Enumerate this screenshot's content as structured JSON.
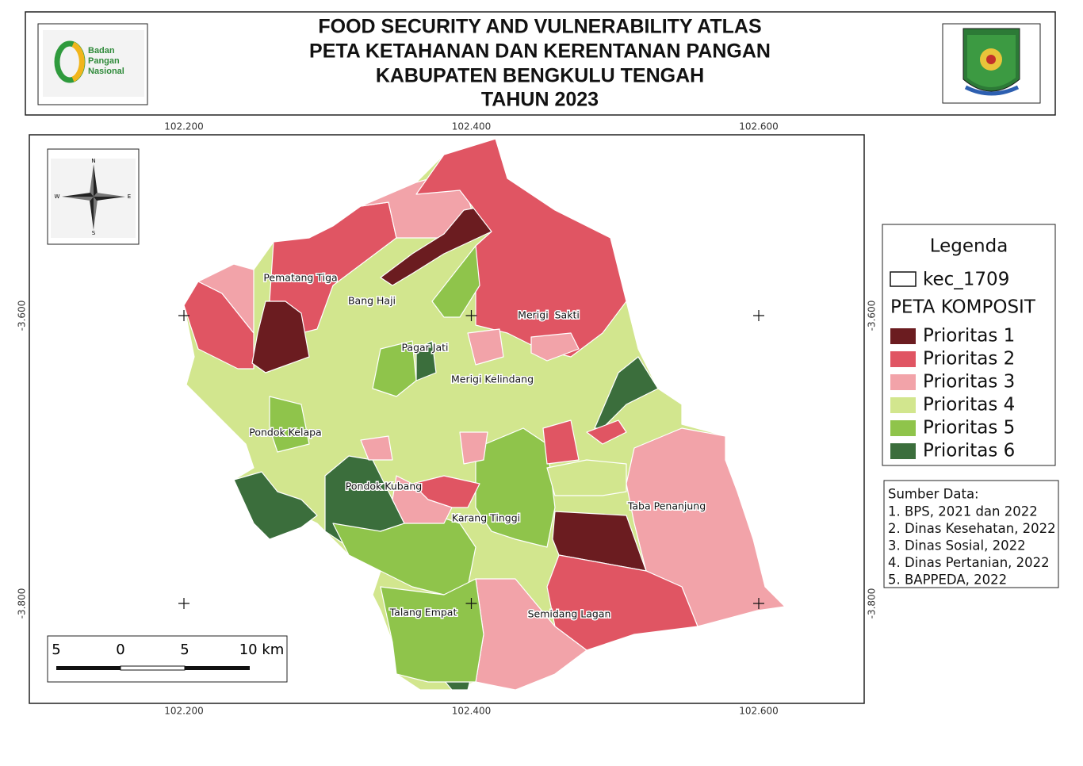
{
  "header": {
    "title_lines": [
      "FOOD SECURITY AND VULNERABILITY ATLAS",
      "PETA KETAHANAN DAN KERENTANAN PANGAN",
      "KABUPATEN BENGKULU TENGAH",
      "TAHUN 2023"
    ],
    "logo_text": [
      "Badan",
      "Pangan",
      "Nasional"
    ]
  },
  "coordinates": {
    "longitude": [
      {
        "value": 102.2,
        "label": "102.200"
      },
      {
        "value": 102.4,
        "label": "102.400"
      },
      {
        "value": 102.6,
        "label": "102.600"
      }
    ],
    "latitude": [
      {
        "value": -3.6,
        "label": "-3.600"
      },
      {
        "value": -3.8,
        "label": "-3.800"
      }
    ]
  },
  "compass": [
    "N",
    "E",
    "S",
    "W"
  ],
  "scale_bar": [
    "5",
    "0",
    "5",
    "10 km"
  ],
  "districts": [
    "Pematang Tiga",
    "Bang Haji",
    "Merigi  Sakti",
    "Pagar Jati",
    "Merigi Kelindang",
    "Pondok Kelapa",
    "Pondok Kubang",
    "Karang Tinggi",
    "Taba Penanjung",
    "Talang Empat",
    "Semidang Lagan"
  ],
  "legend": {
    "title": "Legenda",
    "layer": "kec_1709",
    "group": "PETA KOMPOSIT",
    "classes": [
      {
        "label": "Prioritas 1",
        "color": "#6b1c20"
      },
      {
        "label": "Prioritas 2",
        "color": "#e05563"
      },
      {
        "label": "Prioritas 3",
        "color": "#f2a3a9"
      },
      {
        "label": "Prioritas 4",
        "color": "#d2e68e"
      },
      {
        "label": "Prioritas 5",
        "color": "#8fc44b"
      },
      {
        "label": "Prioritas 6",
        "color": "#3b6e3c"
      }
    ]
  },
  "sources": {
    "title": "Sumber Data:",
    "items": [
      "1. BPS, 2021 dan 2022",
      "2. Dinas Kesehatan, 2022",
      "3. Dinas Sosial, 2022",
      "4. Dinas Pertanian, 2022",
      "5. BAPPEDA, 2022"
    ]
  }
}
